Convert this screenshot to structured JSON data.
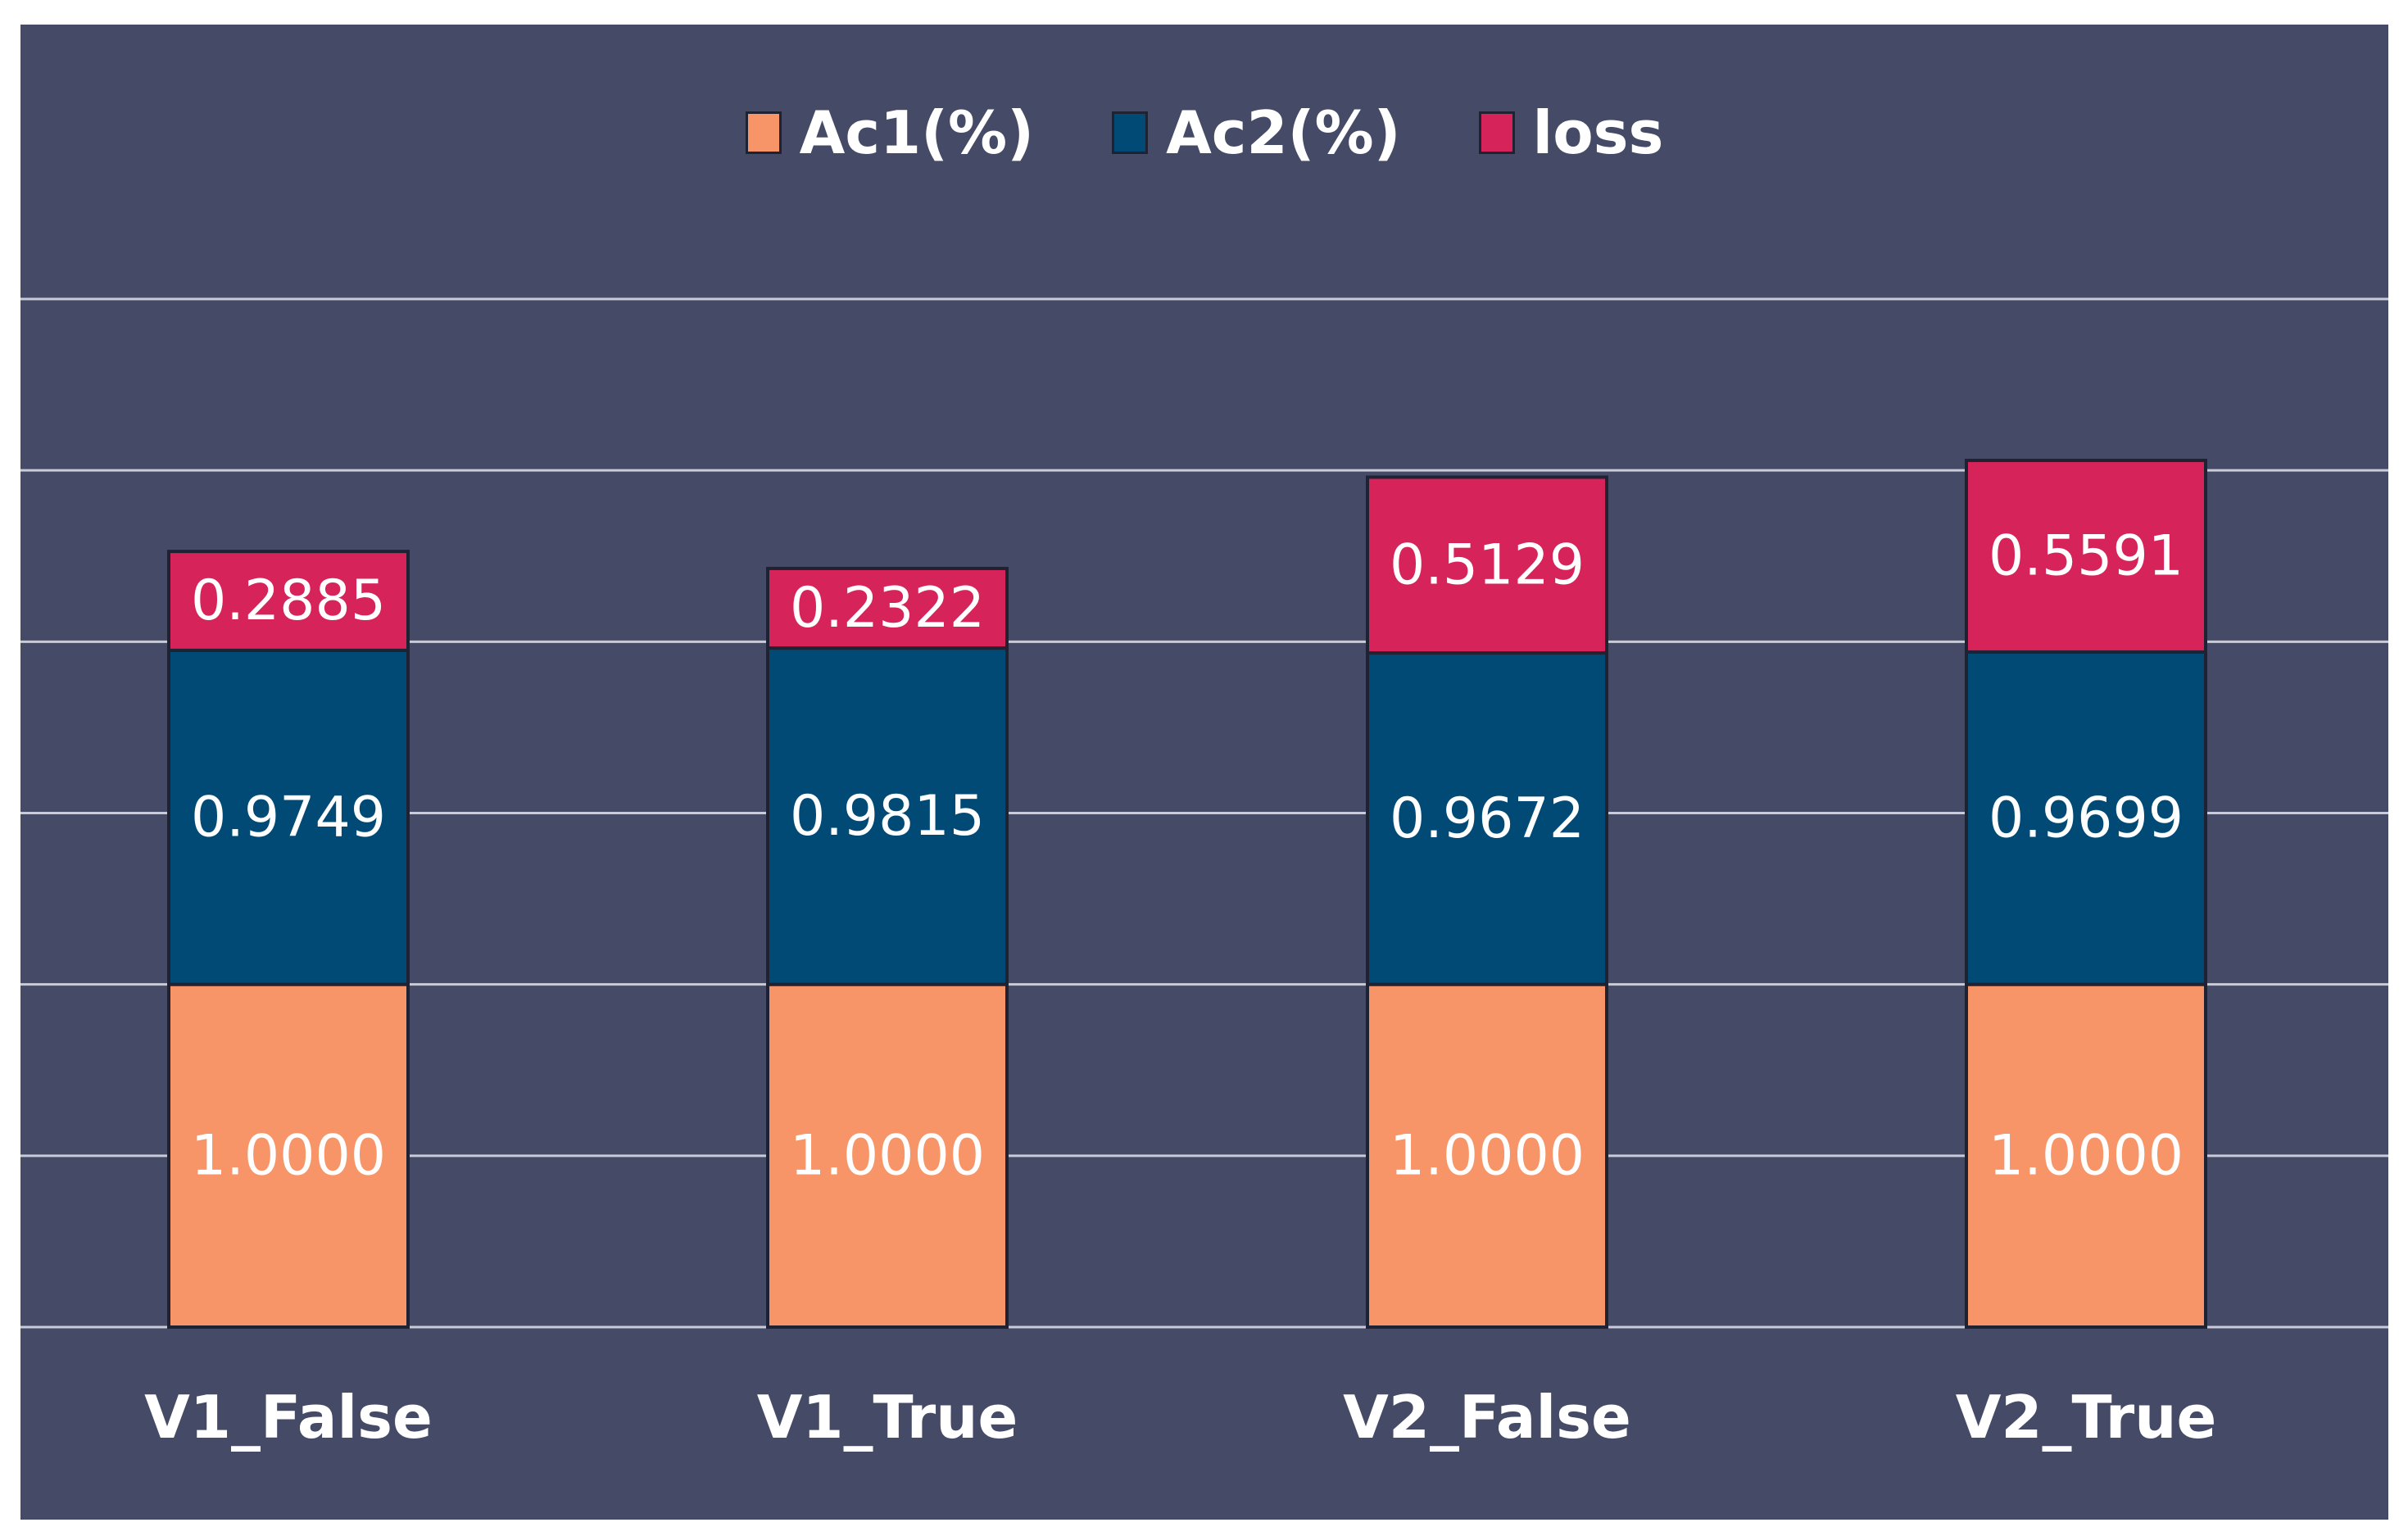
{
  "chart_data": {
    "type": "bar",
    "stacked": true,
    "categories": [
      "V1_False",
      "V1_True",
      "V2_False",
      "V2_True"
    ],
    "series": [
      {
        "name": "Ac1(%)",
        "color": "#f79568",
        "values": [
          1.0,
          1.0,
          1.0,
          1.0
        ],
        "labels": [
          "1.0000",
          "1.0000",
          "1.0000",
          "1.0000"
        ]
      },
      {
        "name": "Ac2(%)",
        "color": "#024a76",
        "values": [
          0.9749,
          0.9815,
          0.9672,
          0.9699
        ],
        "labels": [
          "0.9749",
          "0.9815",
          "0.9672",
          "0.9699"
        ]
      },
      {
        "name": "loss",
        "color": "#d6245a",
        "values": [
          0.2885,
          0.2322,
          0.5129,
          0.5591
        ],
        "labels": [
          "0.2885",
          "0.2322",
          "0.5129",
          "0.5591"
        ]
      }
    ],
    "ylim": [
      0,
      3.0
    ],
    "gridlines": [
      0,
      0.5,
      1.0,
      1.5,
      2.0,
      2.5,
      3.0
    ],
    "legend_position": "top-center",
    "background": "#454a66",
    "grid_color": "#c9ccd8"
  }
}
